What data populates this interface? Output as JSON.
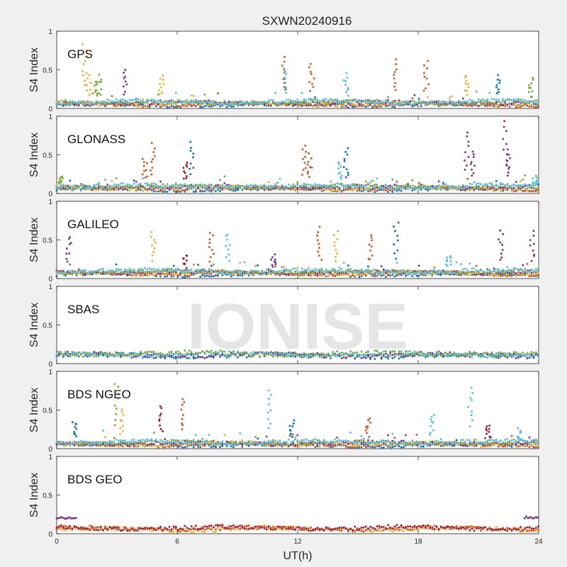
{
  "figure_title": "SXWN20240916",
  "watermark": "IONISE",
  "colors": [
    "#0072bd",
    "#d95319",
    "#edb120",
    "#7e2f8e",
    "#77ac30",
    "#4dbeee",
    "#a2142f"
  ],
  "chart_data": [
    {
      "type": "scatter",
      "panel_label": "GPS",
      "ylabel": "S4 Index",
      "xlim": [
        0,
        24
      ],
      "ylim": [
        0,
        1
      ],
      "yticks": [
        "0",
        "0.5",
        "1"
      ],
      "baseline": 0.07,
      "spikes": [
        {
          "x": 1.4,
          "y": 0.82,
          "c": 2
        },
        {
          "x": 1.6,
          "y": 0.45,
          "c": 2
        },
        {
          "x": 1.9,
          "y": 0.35,
          "c": 4
        },
        {
          "x": 2.1,
          "y": 0.42,
          "c": 4
        },
        {
          "x": 3.4,
          "y": 0.48,
          "c": 3
        },
        {
          "x": 5.2,
          "y": 0.42,
          "c": 2
        },
        {
          "x": 11.3,
          "y": 0.65,
          "c": 1
        },
        {
          "x": 11.4,
          "y": 0.52,
          "c": 5
        },
        {
          "x": 12.7,
          "y": 0.58,
          "c": 1
        },
        {
          "x": 14.4,
          "y": 0.45,
          "c": 5
        },
        {
          "x": 16.9,
          "y": 0.62,
          "c": 1
        },
        {
          "x": 18.4,
          "y": 0.6,
          "c": 1
        },
        {
          "x": 20.4,
          "y": 0.42,
          "c": 2
        },
        {
          "x": 22.0,
          "y": 0.42,
          "c": 0
        },
        {
          "x": 23.6,
          "y": 0.4,
          "c": 4
        }
      ]
    },
    {
      "type": "scatter",
      "panel_label": "GLONASS",
      "ylabel": "S4 Index",
      "xlim": [
        0,
        24
      ],
      "ylim": [
        0,
        1
      ],
      "yticks": [
        "0",
        "0.5",
        "1"
      ],
      "baseline": 0.08,
      "spikes": [
        {
          "x": 0.2,
          "y": 0.22,
          "c": 4
        },
        {
          "x": 4.4,
          "y": 0.45,
          "c": 1
        },
        {
          "x": 4.8,
          "y": 0.65,
          "c": 1
        },
        {
          "x": 6.4,
          "y": 0.4,
          "c": 6
        },
        {
          "x": 6.7,
          "y": 0.65,
          "c": 0
        },
        {
          "x": 12.3,
          "y": 0.62,
          "c": 1
        },
        {
          "x": 12.6,
          "y": 0.5,
          "c": 1
        },
        {
          "x": 14.1,
          "y": 0.4,
          "c": 5
        },
        {
          "x": 14.4,
          "y": 0.58,
          "c": 0
        },
        {
          "x": 20.4,
          "y": 0.8,
          "c": 3
        },
        {
          "x": 20.7,
          "y": 0.55,
          "c": 3
        },
        {
          "x": 22.3,
          "y": 0.95,
          "c": 3
        },
        {
          "x": 22.5,
          "y": 0.55,
          "c": 3
        },
        {
          "x": 23.8,
          "y": 0.2,
          "c": 5
        }
      ]
    },
    {
      "type": "scatter",
      "panel_label": "GALILEO",
      "ylabel": "S4 Index",
      "xlim": [
        0,
        24
      ],
      "ylim": [
        0,
        1
      ],
      "yticks": [
        "0",
        "0.5",
        "1"
      ],
      "baseline": 0.08,
      "spikes": [
        {
          "x": 0.6,
          "y": 0.55,
          "c": 3
        },
        {
          "x": 4.8,
          "y": 0.6,
          "c": 2
        },
        {
          "x": 6.4,
          "y": 0.3,
          "c": 6
        },
        {
          "x": 7.7,
          "y": 0.6,
          "c": 1
        },
        {
          "x": 8.5,
          "y": 0.58,
          "c": 5
        },
        {
          "x": 10.8,
          "y": 0.3,
          "c": 3
        },
        {
          "x": 13.1,
          "y": 0.65,
          "c": 1
        },
        {
          "x": 13.9,
          "y": 0.6,
          "c": 2
        },
        {
          "x": 15.6,
          "y": 0.58,
          "c": 1
        },
        {
          "x": 16.9,
          "y": 0.72,
          "c": 0
        },
        {
          "x": 19.5,
          "y": 0.3,
          "c": 5
        },
        {
          "x": 22.1,
          "y": 0.62,
          "c": 3
        },
        {
          "x": 23.7,
          "y": 0.6,
          "c": 3
        }
      ]
    },
    {
      "type": "scatter",
      "panel_label": "SBAS",
      "ylabel": "S4 Index",
      "xlim": [
        0,
        24
      ],
      "ylim": [
        0,
        1
      ],
      "yticks": [
        "0",
        "0.5",
        "1"
      ],
      "baseline": 0.12,
      "spikes": []
    },
    {
      "type": "scatter",
      "panel_label": "BDS NGEO",
      "ylabel": "S4 Index",
      "xlim": [
        0,
        24
      ],
      "ylim": [
        0,
        1
      ],
      "yticks": [
        "0",
        "0.5",
        "1"
      ],
      "baseline": 0.07,
      "spikes": [
        {
          "x": 0.9,
          "y": 0.35,
          "c": 0
        },
        {
          "x": 3.0,
          "y": 0.85,
          "c": 4
        },
        {
          "x": 3.2,
          "y": 0.5,
          "c": 2
        },
        {
          "x": 5.2,
          "y": 0.55,
          "c": 6
        },
        {
          "x": 6.3,
          "y": 0.65,
          "c": 1
        },
        {
          "x": 10.6,
          "y": 0.75,
          "c": 5
        },
        {
          "x": 11.7,
          "y": 0.35,
          "c": 0
        },
        {
          "x": 15.5,
          "y": 0.38,
          "c": 1
        },
        {
          "x": 18.7,
          "y": 0.45,
          "c": 5
        },
        {
          "x": 20.6,
          "y": 0.8,
          "c": 5
        },
        {
          "x": 21.5,
          "y": 0.3,
          "c": 6
        },
        {
          "x": 23.0,
          "y": 0.25,
          "c": 5
        }
      ]
    },
    {
      "type": "scatter",
      "panel_label": "BDS GEO",
      "ylabel": "S4 Index",
      "xlim": [
        0,
        24
      ],
      "ylim": [
        0,
        1
      ],
      "yticks": [
        "0",
        "0.5",
        "1"
      ],
      "xticks": [
        "0",
        "6",
        "12",
        "18",
        "24"
      ],
      "xlabel": "UT(h)",
      "baseline": 0.07,
      "purple_segments": [
        [
          0,
          1.0,
          0.21
        ],
        [
          23.3,
          24,
          0.21
        ]
      ],
      "spikes": []
    }
  ]
}
